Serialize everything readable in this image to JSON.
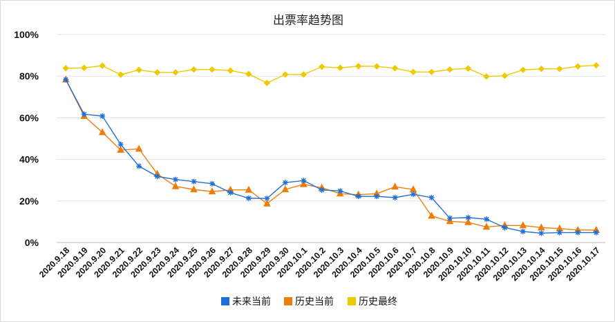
{
  "chart_data": {
    "type": "line",
    "title": "出票率趋势图",
    "xlabel": "",
    "ylabel": "",
    "ylim": [
      0,
      100
    ],
    "yticks": [
      "0%",
      "20%",
      "40%",
      "60%",
      "80%",
      "100%"
    ],
    "grid": true,
    "legend_position": "bottom",
    "categories": [
      "2020.9.18",
      "2020.9.19",
      "2020.9.20",
      "2020.9.21",
      "2020.9.22",
      "2020.9.23",
      "2020.9.24",
      "2020.9.25",
      "2020.9.26",
      "2020.9.27",
      "2020.9.28",
      "2020.9.29",
      "2020.9.30",
      "2020.10.1",
      "2020.10.2",
      "2020.10.3",
      "2020.10.4",
      "2020.10.5",
      "2020.10.6",
      "2020.10.7",
      "2020.10.8",
      "2020.10.9",
      "2020.10.10",
      "2020.10.11",
      "2020.10.12",
      "2020.10.13",
      "2020.10.14",
      "2020.10.15",
      "2020.10.16",
      "2020.10.17"
    ],
    "series": [
      {
        "name": "未来当前",
        "color": "#1f6fd6",
        "marker": "star",
        "values": [
          78.3,
          61.7,
          60.8,
          47.2,
          36.7,
          31.8,
          30.3,
          29.3,
          28.3,
          24.0,
          21.3,
          21.2,
          28.8,
          29.8,
          25.3,
          24.8,
          22.2,
          22.2,
          21.6,
          23.2,
          21.6,
          11.7,
          12.0,
          11.2,
          7.2,
          5.3,
          4.5,
          4.8,
          4.8,
          4.8
        ]
      },
      {
        "name": "历史当前",
        "color": "#ee7d0c",
        "marker": "triangle",
        "values": [
          78.3,
          60.8,
          53.0,
          44.5,
          45.0,
          33.0,
          27.0,
          25.5,
          24.5,
          25.3,
          25.3,
          18.7,
          25.5,
          28.0,
          26.3,
          23.5,
          23.0,
          23.5,
          26.8,
          25.5,
          12.8,
          10.2,
          9.7,
          7.5,
          8.2,
          8.2,
          7.2,
          6.7,
          6.0,
          6.0
        ]
      },
      {
        "name": "历史最终",
        "color": "#f0c800",
        "marker": "diamond",
        "values": [
          83.8,
          84.0,
          85.0,
          80.7,
          83.0,
          81.8,
          81.8,
          83.2,
          83.2,
          82.7,
          81.0,
          76.7,
          80.8,
          80.8,
          84.5,
          84.0,
          84.8,
          84.7,
          83.8,
          82.0,
          82.0,
          83.2,
          83.7,
          79.8,
          80.2,
          83.0,
          83.5,
          83.5,
          84.7,
          85.2
        ]
      }
    ]
  }
}
